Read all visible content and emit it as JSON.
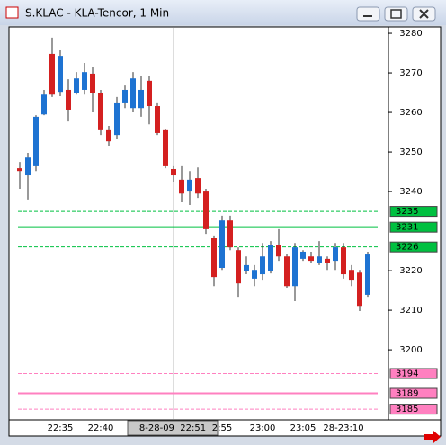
{
  "chart_data": {
    "type": "candlestick",
    "title": "S.KLAC - KLA-Tencor, 1 Min",
    "categories": [
      null,
      null,
      null,
      null,
      null,
      "22:35",
      null,
      null,
      null,
      null,
      "22:40",
      null,
      null,
      null,
      null,
      null,
      null,
      null,
      null,
      null,
      null,
      null,
      null,
      null,
      null,
      "2:55",
      null,
      null,
      null,
      null,
      "23:00",
      null,
      null,
      null,
      null,
      "23:05",
      null,
      null,
      null,
      null,
      "28-23:10",
      null,
      null,
      null
    ],
    "cursor_label": "8-28-09  22:51",
    "up_color": "#1e73d2",
    "down_color": "#d42020",
    "open": [
      3245.9,
      3244.1,
      3246.4,
      3259.5,
      3274.8,
      3265.2,
      3265.7,
      3265,
      3265.7,
      3269.8,
      3265,
      3255.5,
      3254.3,
      3262.3,
      3261.1,
      3261.1,
      3268,
      3261.6,
      3255.5,
      3245.7,
      3243,
      3240,
      3243.4,
      3240,
      3228.2,
      3220.7,
      3232.7,
      3225.2,
      3219.8,
      3218,
      3219.1,
      3219.8,
      3226.6,
      3223.6,
      3216.1,
      3223,
      3223.6,
      3222,
      3223,
      3222.5,
      3225.9,
      3220.2,
      3219.5,
      3213.9
    ],
    "high": [
      3247.5,
      3249.8,
      3259.3,
      3265.7,
      3278.9,
      3275.7,
      3268.4,
      3270.2,
      3272.5,
      3271.4,
      3265.7,
      3256.6,
      3263.9,
      3266.8,
      3270.2,
      3269.1,
      3269.1,
      3262.3,
      3255.9,
      3246.4,
      3246.4,
      3245.2,
      3246.1,
      3240.7,
      3228.9,
      3233.9,
      3233.9,
      3225.9,
      3223.6,
      3221.4,
      3227,
      3227.5,
      3230.5,
      3224.3,
      3227,
      3225.2,
      3224.8,
      3227.5,
      3223.6,
      3227,
      3227,
      3221.4,
      3220.2,
      3224.8
    ],
    "low": [
      3240.7,
      3238,
      3245.2,
      3259.3,
      3263.9,
      3264.1,
      3257.7,
      3264.5,
      3264.5,
      3260,
      3254.3,
      3251.6,
      3253.2,
      3261.1,
      3260,
      3258.9,
      3257,
      3254.3,
      3245.9,
      3242.5,
      3237.3,
      3236.6,
      3238.4,
      3229.3,
      3216.1,
      3220.2,
      3225.2,
      3213.4,
      3219.1,
      3216.1,
      3217.5,
      3219.3,
      3222.5,
      3215.7,
      3212.3,
      3222.5,
      3222,
      3221.4,
      3220.2,
      3220.2,
      3218,
      3216.1,
      3209.8,
      3213.4
    ],
    "close": [
      3245.2,
      3248.6,
      3258.9,
      3264.5,
      3264.5,
      3274.3,
      3260.7,
      3268.6,
      3270.2,
      3265,
      3255.5,
      3252.7,
      3262.3,
      3265.7,
      3268.6,
      3265.7,
      3261.6,
      3254.8,
      3246.4,
      3244.1,
      3239.5,
      3243,
      3239.5,
      3230.5,
      3218.4,
      3232.7,
      3225.9,
      3216.8,
      3221.4,
      3220.2,
      3223.6,
      3226.6,
      3223.6,
      3216.1,
      3225.9,
      3224.8,
      3222.5,
      3223.6,
      3222,
      3225.9,
      3219.1,
      3217.5,
      3211.1,
      3224.1
    ],
    "ylim": [
      3182.3,
      3281.6
    ],
    "yticks": [
      3200,
      3210,
      3220,
      3240,
      3250,
      3260,
      3270,
      3280
    ],
    "levels": [
      {
        "value": 3235,
        "color": "#00c040",
        "style": "dashed"
      },
      {
        "value": 3231,
        "color": "#00c040",
        "style": "solid"
      },
      {
        "value": 3226,
        "color": "#00c040",
        "style": "dashed"
      },
      {
        "value": 3194,
        "color": "#ff80c0",
        "style": "dashed"
      },
      {
        "value": 3189,
        "color": "#ff80c0",
        "style": "solid"
      },
      {
        "value": 3185,
        "color": "#ff80c0",
        "style": "dashed"
      }
    ]
  }
}
